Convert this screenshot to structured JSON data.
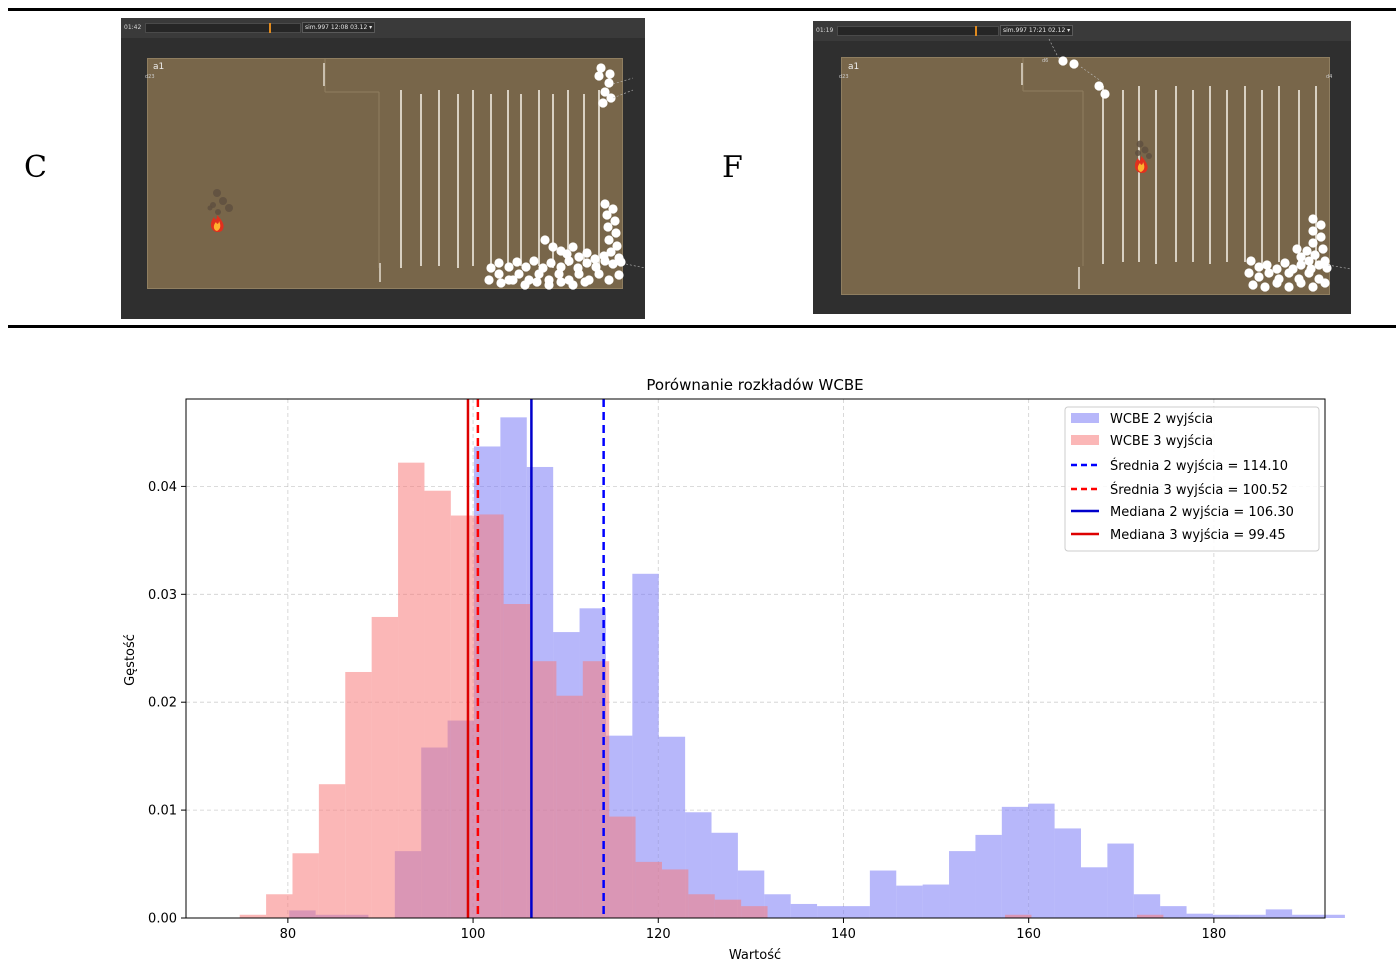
{
  "figure_labels": {
    "left": "C",
    "right": "F"
  },
  "panels": [
    {
      "time": "01:42",
      "sim_select": "sim.997 12:08 03.12 ▾",
      "room_label": "a1",
      "tag_left": "d23",
      "tag_right": "",
      "tag_top": ""
    },
    {
      "time": "01:19",
      "sim_select": "sim.997 17:21 02.12 ▾",
      "room_label": "a1",
      "tag_left": "d23",
      "tag_right": "d4",
      "tag_top": "d6"
    }
  ],
  "chart_data": {
    "type": "bar",
    "title": "Porównanie rozkładów WCBE",
    "xlabel": "Wartość",
    "ylabel": "Gęstość",
    "xlim": [
      69,
      192
    ],
    "ylim": [
      0,
      0.0481
    ],
    "xticks": [
      80,
      100,
      120,
      140,
      160,
      180
    ],
    "yticks": [
      0.0,
      0.01,
      0.02,
      0.03,
      0.04
    ],
    "ytick_labels": [
      "0.00",
      "0.01",
      "0.02",
      "0.03",
      "0.04"
    ],
    "grid": true,
    "legend_position": "top-right",
    "colors": {
      "hist2": "#7b7bf5",
      "hist3": "#f77b7b",
      "mean2": "#0000ff",
      "mean3": "#ff0000",
      "median2": "#0000cc",
      "median3": "#dd0000"
    },
    "series": [
      {
        "name": "WCBE 2 wyjścia",
        "bin_start": 77.3,
        "bin_width": 2.85,
        "values": [
          0.0,
          0.0007,
          0.0003,
          0.0003,
          0.0,
          0.0062,
          0.0158,
          0.0183,
          0.0437,
          0.0464,
          0.0418,
          0.0265,
          0.0287,
          0.0169,
          0.0319,
          0.0168,
          0.0098,
          0.0079,
          0.0044,
          0.0022,
          0.0013,
          0.0011,
          0.0011,
          0.0044,
          0.003,
          0.0031,
          0.0062,
          0.0077,
          0.0103,
          0.0106,
          0.0083,
          0.0047,
          0.0069,
          0.0022,
          0.0011,
          0.0004,
          0.0003,
          0.0003,
          0.0008,
          0.0003,
          0.0003
        ]
      },
      {
        "name": "WCBE 3 wyjścia",
        "bin_start": 74.8,
        "bin_width": 2.85,
        "values": [
          0.0003,
          0.0022,
          0.006,
          0.0124,
          0.0228,
          0.0279,
          0.0422,
          0.0396,
          0.0373,
          0.0374,
          0.0291,
          0.0238,
          0.0206,
          0.0238,
          0.0094,
          0.0052,
          0.0045,
          0.0022,
          0.0017,
          0.0011,
          0.0,
          0.0,
          0.0,
          0.0,
          0.0,
          0.0,
          0.0,
          0.0,
          0.0,
          0.0003,
          0.0,
          0.0,
          0.0,
          0.0,
          0.0003
        ]
      }
    ],
    "vlines": [
      {
        "name": "Średnia 2 wyjścia = 114.10",
        "x": 114.1,
        "style": "dashed",
        "color": "#0000ff"
      },
      {
        "name": "Średnia 3 wyjścia = 100.52",
        "x": 100.52,
        "style": "dashed",
        "color": "#ff0000"
      },
      {
        "name": "Mediana 2 wyjścia = 106.30",
        "x": 106.3,
        "style": "solid",
        "color": "#0000cc"
      },
      {
        "name": "Mediana 3 wyjścia = 99.45",
        "x": 99.45,
        "style": "solid",
        "color": "#dd0000"
      }
    ]
  }
}
